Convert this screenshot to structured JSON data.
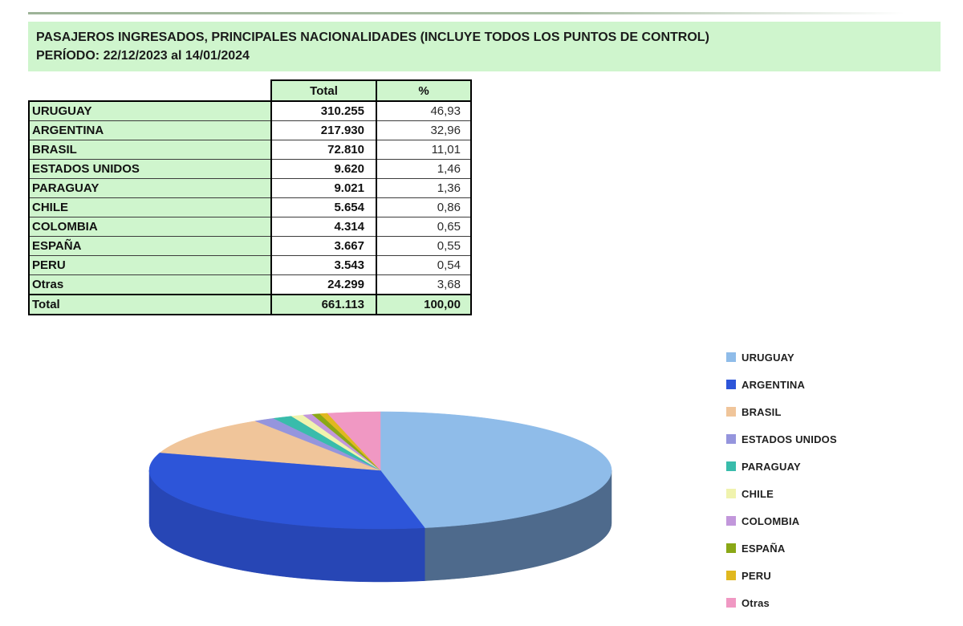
{
  "header": {
    "title_line1": "PASAJEROS INGRESADOS, PRINCIPALES NACIONALIDADES (INCLUYE TODOS LOS PUNTOS DE CONTROL)",
    "title_line2": "PERÍODO: 22/12/2023 al 14/01/2024"
  },
  "colors": {
    "panel_green": "#cff5cd",
    "table_border": "#000000"
  },
  "table": {
    "columns": [
      "",
      "Total",
      "%"
    ],
    "rows": [
      {
        "label": "URUGUAY",
        "total": "310.255",
        "pct": "46,93"
      },
      {
        "label": "ARGENTINA",
        "total": "217.930",
        "pct": "32,96"
      },
      {
        "label": "BRASIL",
        "total": "72.810",
        "pct": "11,01"
      },
      {
        "label": "ESTADOS UNIDOS",
        "total": "9.620",
        "pct": "1,46"
      },
      {
        "label": "PARAGUAY",
        "total": "9.021",
        "pct": "1,36"
      },
      {
        "label": "CHILE",
        "total": "5.654",
        "pct": "0,86"
      },
      {
        "label": "COLOMBIA",
        "total": "4.314",
        "pct": "0,65"
      },
      {
        "label": "ESPAÑA",
        "total": "3.667",
        "pct": "0,55"
      },
      {
        "label": "PERU",
        "total": "3.543",
        "pct": "0,54"
      },
      {
        "label": "Otras",
        "total": "24.299",
        "pct": "3,68"
      }
    ],
    "total_row": {
      "label": "Total",
      "total": "661.113",
      "pct": "100,00"
    }
  },
  "chart_data": {
    "type": "pie",
    "style": "3d",
    "start_angle_deg": 0,
    "direction": "clockwise",
    "legend_position": "right",
    "slices": [
      {
        "label": "URUGUAY",
        "value": 310255,
        "pct": 46.93,
        "color": "#8fbce9",
        "side": "#4e6a8c"
      },
      {
        "label": "ARGENTINA",
        "value": 217930,
        "pct": 32.96,
        "color": "#2d55d9",
        "side": "#2746b5"
      },
      {
        "label": "BRASIL",
        "value": 72810,
        "pct": 11.01,
        "color": "#f0c59a",
        "side": "#b3926f"
      },
      {
        "label": "ESTADOS UNIDOS",
        "value": 9620,
        "pct": 1.46,
        "color": "#9595dd",
        "side": "#6e6ea8"
      },
      {
        "label": "PARAGUAY",
        "value": 9021,
        "pct": 1.36,
        "color": "#39bcab",
        "side": "#2a8d80"
      },
      {
        "label": "CHILE",
        "value": 5654,
        "pct": 0.86,
        "color": "#f0f3ae",
        "side": "#b4b682"
      },
      {
        "label": "COLOMBIA",
        "value": 4314,
        "pct": 0.65,
        "color": "#c297db",
        "side": "#9171a4"
      },
      {
        "label": "ESPAÑA",
        "value": 3667,
        "pct": 0.55,
        "color": "#8aa816",
        "side": "#677e10"
      },
      {
        "label": "PERU",
        "value": 3543,
        "pct": 0.54,
        "color": "#e0b81f",
        "side": "#a88a17"
      },
      {
        "label": "Otras",
        "value": 24299,
        "pct": 3.68,
        "color": "#f098c3",
        "side": "#b47292"
      }
    ],
    "total_value": 661113
  }
}
